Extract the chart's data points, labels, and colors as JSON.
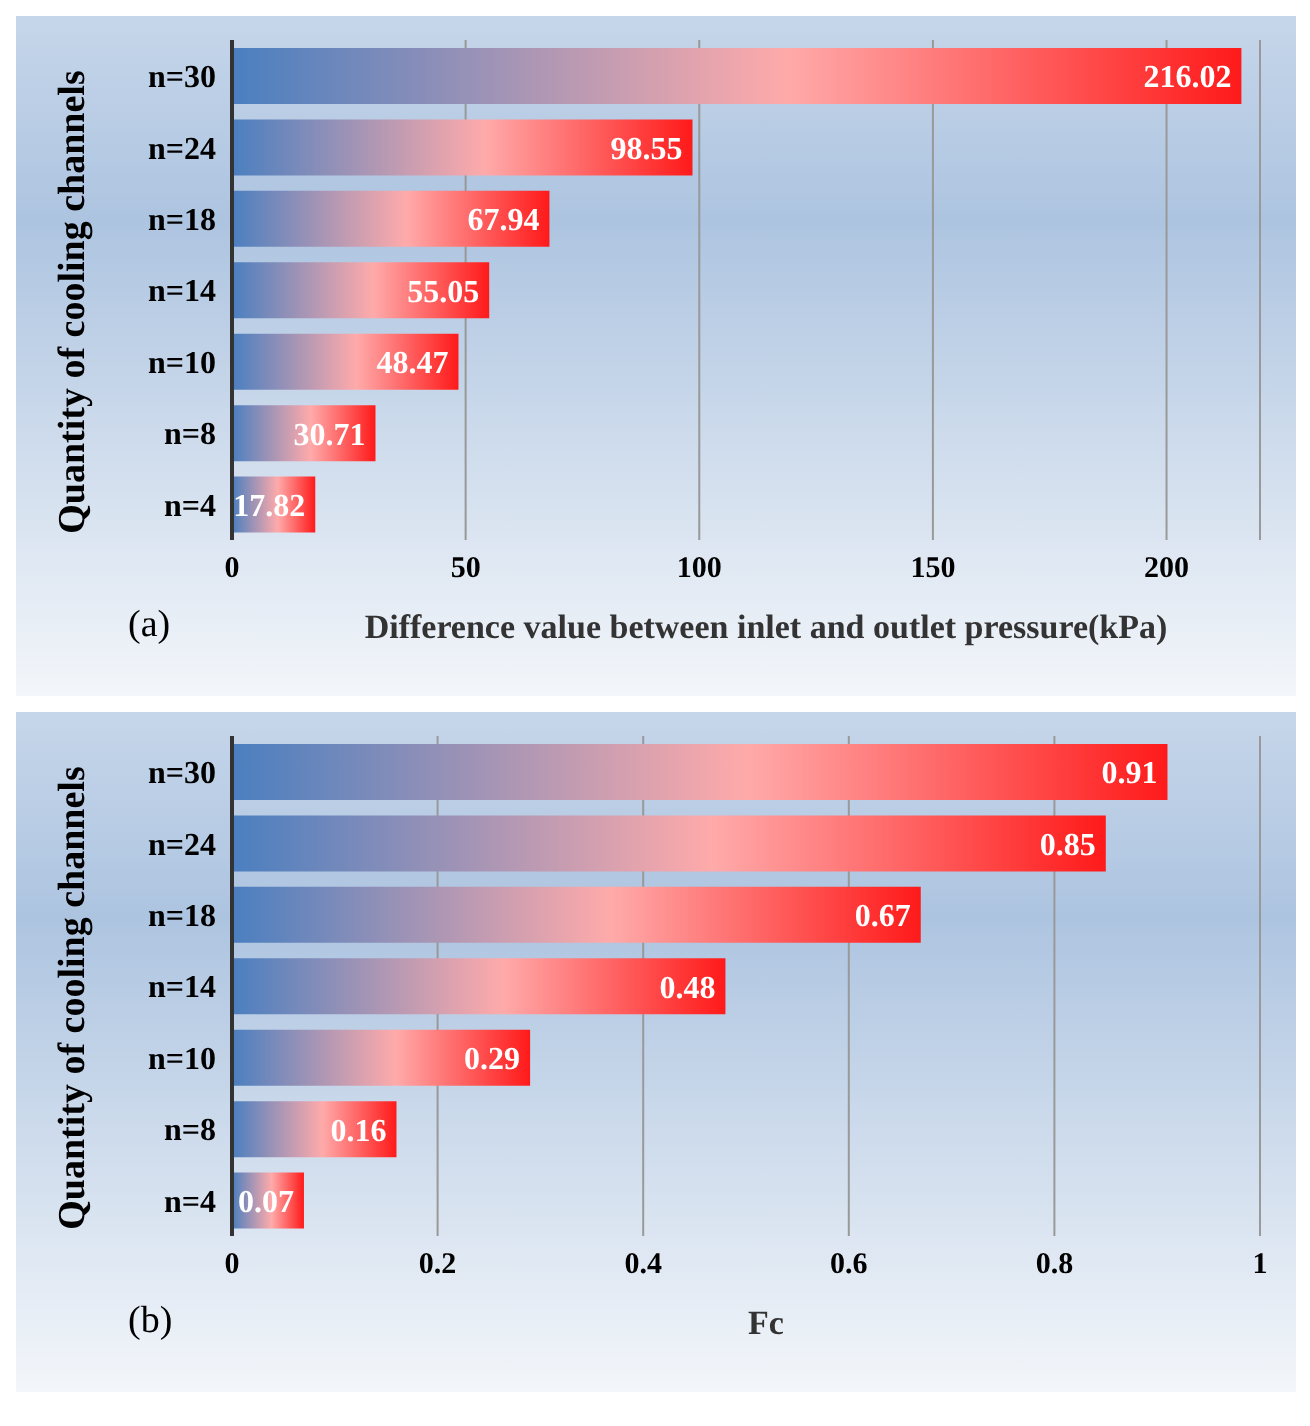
{
  "chart_data": [
    {
      "type": "bar",
      "orientation": "horizontal",
      "ylabel": "Quantity of cooling channels",
      "xlabel": "Difference value between inlet and outlet pressure(kPa)",
      "categories": [
        "n=30",
        "n=24",
        "n=18",
        "n=14",
        "n=10",
        "n=8",
        "n=4"
      ],
      "values": [
        216.02,
        98.55,
        67.94,
        55.05,
        48.47,
        30.71,
        17.82
      ],
      "color": "#ff1a1a",
      "data_labels": true,
      "xlim": [
        0,
        220
      ],
      "xticks": [
        0,
        50,
        100,
        150,
        200
      ],
      "grid": "x",
      "annotations": [
        "(a)"
      ]
    },
    {
      "type": "bar",
      "orientation": "horizontal",
      "ylabel": "Quantity of cooling channels",
      "xlabel": "Fc",
      "categories": [
        "n=30",
        "n=24",
        "n=18",
        "n=14",
        "n=10",
        "n=8",
        "n=4"
      ],
      "values": [
        0.91,
        0.85,
        0.67,
        0.48,
        0.29,
        0.16,
        0.07
      ],
      "color": "#ff1a1a",
      "data_labels": true,
      "xlim": [
        0,
        1
      ],
      "xticks": [
        0,
        0.2,
        0.4,
        0.6,
        0.8,
        1
      ],
      "grid": "x",
      "annotations": [
        "(b)"
      ]
    }
  ]
}
